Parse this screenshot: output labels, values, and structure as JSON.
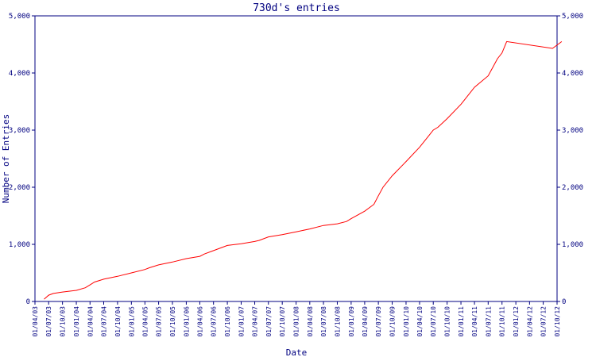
{
  "chart_data": {
    "type": "line",
    "title": "730d's entries",
    "xlabel": "Date",
    "ylabel": "Number of Entries",
    "ylim": [
      0,
      5000
    ],
    "y_ticks": [
      0,
      1000,
      2000,
      3000,
      4000,
      5000
    ],
    "y_tick_labels": [
      "0",
      "1,000",
      "2,000",
      "3,000",
      "4,000",
      "5,000"
    ],
    "x_tick_labels": [
      "01/04/03",
      "01/07/03",
      "01/10/03",
      "01/01/04",
      "01/04/04",
      "01/07/04",
      "01/10/04",
      "01/01/05",
      "01/04/05",
      "01/07/05",
      "01/10/05",
      "01/01/06",
      "01/04/06",
      "01/07/06",
      "01/10/06",
      "01/01/07",
      "01/04/07",
      "01/07/07",
      "01/10/07",
      "01/01/08",
      "01/04/08",
      "01/07/08",
      "01/10/08",
      "01/01/09",
      "01/04/09",
      "01/07/09",
      "01/10/09",
      "01/01/10",
      "01/04/10",
      "01/07/10",
      "01/10/10",
      "01/01/11",
      "01/04/11",
      "01/07/11",
      "01/10/11",
      "01/01/12",
      "01/04/12",
      "01/07/12",
      "01/10/12"
    ],
    "grid": false,
    "line_color": "#ff0000",
    "axis_color": "#000080",
    "series": [
      {
        "x": [
          "2003-06-01",
          "2003-07-01",
          "2003-08-01",
          "2003-10-01",
          "2004-01-01",
          "2004-03-01",
          "2004-04-01",
          "2004-05-01",
          "2004-07-01",
          "2004-10-01",
          "2005-01-01",
          "2005-04-01",
          "2005-05-01",
          "2005-07-01",
          "2005-10-01",
          "2006-01-01",
          "2006-04-01",
          "2006-05-01",
          "2006-07-01",
          "2006-10-01",
          "2007-01-01",
          "2007-04-01",
          "2007-05-01",
          "2007-07-01",
          "2007-10-01",
          "2008-01-01",
          "2008-04-01",
          "2008-07-01",
          "2008-10-01",
          "2008-12-01",
          "2009-01-01",
          "2009-04-01",
          "2009-06-01",
          "2009-07-01",
          "2009-08-01",
          "2009-10-01",
          "2010-01-01",
          "2010-04-01",
          "2010-06-01",
          "2010-07-01",
          "2010-08-01",
          "2010-10-01",
          "2011-01-01",
          "2011-04-01",
          "2011-07-01",
          "2011-08-01",
          "2011-09-01",
          "2011-10-01",
          "2011-11-01",
          "2012-09-01",
          "2012-11-01"
        ],
        "y": [
          40,
          110,
          140,
          165,
          195,
          240,
          290,
          340,
          390,
          440,
          500,
          560,
          590,
          640,
          690,
          750,
          790,
          830,
          890,
          980,
          1010,
          1050,
          1070,
          1130,
          1170,
          1220,
          1270,
          1330,
          1360,
          1400,
          1450,
          1580,
          1700,
          1850,
          2000,
          2200,
          2450,
          2700,
          2900,
          3000,
          3050,
          3200,
          3450,
          3750,
          3950,
          4100,
          4250,
          4350,
          4550,
          4430,
          4550
        ]
      }
    ]
  }
}
